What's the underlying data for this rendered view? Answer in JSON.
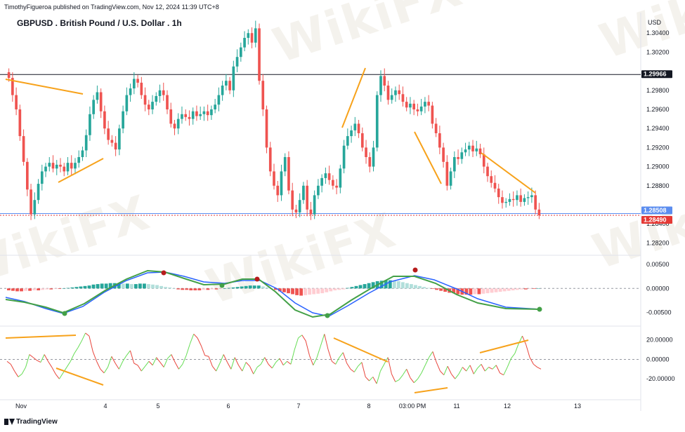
{
  "header": {
    "credit": "TimothyFigueroa published on TradingView.com, Nov 12, 2024 11:39 UTC+8",
    "symbol": "GBPUSD . British Pound / U.S. Dollar . 1h",
    "currency": "USD"
  },
  "watermark": "WikiFX",
  "footer": {
    "brand": "TradingView"
  },
  "colors": {
    "up": "#26a69a",
    "down": "#ef5350",
    "orange": "#f7a21b",
    "macd_fast": "#43a047",
    "macd_slow": "#2962ff",
    "macd_dark": "#b71c1c",
    "rsi_up": "#66dd55",
    "rsi_down": "#e8453c",
    "price_line": "#5b8def",
    "current_price": "#e53935"
  },
  "chart_data": [
    {
      "type": "candlestick",
      "title": "GBPUSD . British Pound / U.S. Dollar . 1h",
      "y_axis_ticks": [
        "1.30400",
        "1.30200",
        "1.29800",
        "1.29600",
        "1.29400",
        "1.29200",
        "1.29000",
        "1.28800",
        "1.28400",
        "1.28200"
      ],
      "ylim": [
        1.281,
        1.306
      ],
      "x_axis_ticks": [
        "Nov",
        "4",
        "5",
        "6",
        "7",
        "8",
        "03:00 PM",
        "11",
        "12",
        "13"
      ],
      "horizontal_levels": [
        {
          "label": "1.29966",
          "value": 1.29966,
          "style": "black"
        },
        {
          "label": "1.28508",
          "value": 1.28508,
          "style": "blue"
        },
        {
          "label": "1.28490",
          "value": 1.2849,
          "style": "red"
        }
      ],
      "closes": [
        1.2993,
        1.2975,
        1.296,
        1.2932,
        1.2905,
        1.2876,
        1.285,
        1.2865,
        1.2882,
        1.2895,
        1.29,
        1.2904,
        1.2898,
        1.2902,
        1.29,
        1.2895,
        1.2904,
        1.2898,
        1.2904,
        1.291,
        1.2917,
        1.2933,
        1.2955,
        1.297,
        1.2978,
        1.2958,
        1.294,
        1.2928,
        1.2925,
        1.2918,
        1.294,
        1.2958,
        1.2975,
        1.2982,
        1.2992,
        1.2988,
        1.2975,
        1.2965,
        1.296,
        1.2968,
        1.2974,
        1.298,
        1.2975,
        1.296,
        1.2945,
        1.294,
        1.295,
        1.2955,
        1.2952,
        1.295,
        1.2958,
        1.2953,
        1.2955,
        1.2958,
        1.2954,
        1.296,
        1.2965,
        1.2975,
        1.2985,
        1.299,
        1.298,
        1.3005,
        1.3015,
        1.3025,
        1.3035,
        1.304,
        1.303,
        1.3045,
        1.299,
        1.296,
        1.292,
        1.2895,
        1.288,
        1.287,
        1.2895,
        1.291,
        1.2875,
        1.2855,
        1.2852,
        1.2865,
        1.288,
        1.2855,
        1.285,
        1.287,
        1.288,
        1.2888,
        1.2893,
        1.2886,
        1.288,
        1.2878,
        1.2898,
        1.2922,
        1.2932,
        1.2938,
        1.2945,
        1.2935,
        1.292,
        1.291,
        1.29,
        1.292,
        1.2975,
        1.2995,
        1.2985,
        1.297,
        1.2975,
        1.298,
        1.2976,
        1.2968,
        1.2962,
        1.2966,
        1.296,
        1.2958,
        1.2963,
        1.2968,
        1.2964,
        1.2945,
        1.2935,
        1.292,
        1.2905,
        1.288,
        1.2895,
        1.291,
        1.2908,
        1.2915,
        1.2918,
        1.2922,
        1.2916,
        1.2919,
        1.2913,
        1.29,
        1.289,
        1.2883,
        1.2877,
        1.2868,
        1.2862,
        1.2863,
        1.2866,
        1.2865,
        1.287,
        1.2863,
        1.2867,
        1.2868,
        1.287,
        1.2855,
        1.2849
      ],
      "annotations": {
        "trendlines": "orange divergence trendlines on price and RSI panes",
        "markers": "MACD crossover markers (green = bullish, red = bearish)"
      }
    },
    {
      "type": "macd",
      "y_axis_ticks": [
        "0.00500",
        "0.00000",
        "-0.00500"
      ],
      "ylim": [
        -0.0074,
        0.0066
      ],
      "histogram": [
        -0.0004,
        -0.0005,
        -0.0006,
        -0.0006,
        -0.0005,
        -0.0005,
        -0.0004,
        -0.0004,
        -0.0003,
        -0.0002,
        -0.0002,
        -0.0001,
        -0.0001,
        0,
        0.0001,
        0.0002,
        0.0003,
        0.0004,
        0.0005,
        0.0006,
        0.0008,
        0.0009,
        0.001,
        0.001,
        0.0011,
        0.0011,
        0.0011,
        0.001,
        0.001,
        0.0009,
        0.0009,
        0.001,
        0.001,
        0.0009,
        0.0008,
        0.0007,
        0.0005,
        0.0003,
        0.0002,
        0.0,
        -0.0002,
        -0.0003,
        -0.0003,
        -0.0004,
        -0.0004,
        -0.0004,
        -0.0003,
        -0.0003,
        -0.0002,
        -0.0002,
        -0.0001,
        0,
        0.0001,
        0.0002,
        0.0003,
        0.0004,
        0.0005,
        0.0006,
        0.0006,
        0.0006,
        0.0004,
        0.0002,
        0.0,
        -0.0003,
        -0.0006,
        -0.0008,
        -0.001,
        -0.0012,
        -0.0014,
        -0.0015,
        -0.0014,
        -0.0013,
        -0.0012,
        -0.0011,
        -0.001,
        -0.0008,
        -0.0006,
        -0.0004,
        -0.0003,
        -0.0002,
        0.0001,
        0.0003,
        0.0005,
        0.0007,
        0.0009,
        0.0011,
        0.0013,
        0.0015,
        0.0016,
        0.0017,
        0.0017,
        0.0016,
        0.0015,
        0.0013,
        0.0011,
        0.0009,
        0.0007,
        0.0005,
        0.0003,
        0.0001,
        -0.0001,
        -0.0003,
        -0.0005,
        -0.0007,
        -0.0009,
        -0.001,
        -0.0012,
        -0.0013,
        -0.0013,
        -0.0013,
        -0.0012,
        -0.0012,
        -0.0011,
        -0.001,
        -0.0009,
        -0.0008,
        -0.0007,
        -0.0006,
        -0.0005,
        -0.0004,
        -0.0003,
        -0.0002,
        -0.0002,
        -0.0001,
        -0.0001,
        0
      ]
    },
    {
      "type": "line",
      "name": "RSI-type oscillator",
      "y_axis_ticks": [
        "20.00000",
        "0.00000",
        "-20.00000"
      ],
      "ylim": [
        -40,
        32
      ],
      "values": [
        -2,
        -5,
        -12,
        -18,
        -15,
        -8,
        5,
        2,
        -1,
        -3,
        5,
        -2,
        -8,
        -15,
        -20,
        -14,
        -8,
        -2,
        6,
        12,
        19,
        27,
        24,
        8,
        -2,
        -10,
        -14,
        -8,
        3,
        -4,
        -10,
        -2,
        4,
        9,
        -4,
        -6,
        -12,
        -7,
        -2,
        -6,
        2,
        -3,
        -8,
        1,
        5,
        -3,
        -10,
        -5,
        4,
        16,
        26,
        22,
        14,
        4,
        3,
        -7,
        -12,
        -4,
        5,
        -3,
        -10,
        2,
        -6,
        -12,
        -3,
        -7,
        -15,
        -8,
        -5,
        2,
        -5,
        -9,
        -3,
        1,
        -6,
        -2,
        -5,
        10,
        22,
        25,
        19,
        4,
        -6,
        2,
        14,
        26,
        10,
        -2,
        -5,
        2,
        7,
        -4,
        -10,
        -13,
        -7,
        -3,
        -18,
        -22,
        -18,
        -25,
        -12,
        -5,
        2,
        -15,
        -23,
        -21,
        -16,
        -10,
        -19,
        -24,
        -20,
        -14,
        -6,
        2,
        8,
        -3,
        -12,
        -16,
        -7,
        -15,
        -20,
        -15,
        -8,
        -12,
        -6,
        -15,
        -9,
        -5,
        -12,
        -8,
        -10,
        -6,
        -14,
        -16,
        -8,
        1,
        6,
        16,
        24,
        15,
        2,
        -5,
        -8,
        -10
      ]
    }
  ]
}
